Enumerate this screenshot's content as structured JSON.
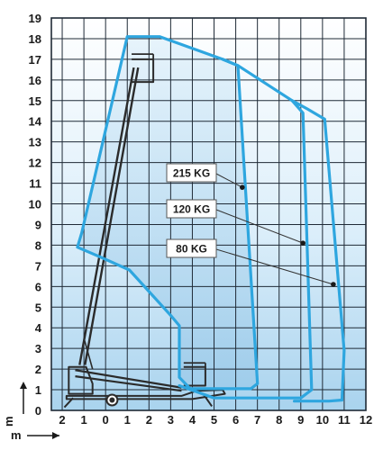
{
  "chart": {
    "x_axis": {
      "unit_label": "m",
      "ticks": [
        "2",
        "1",
        "0",
        "1",
        "2",
        "3",
        "4",
        "5",
        "6",
        "7",
        "8",
        "9",
        "10",
        "11",
        "12"
      ],
      "tick_values": [
        -2,
        -1,
        0,
        1,
        2,
        3,
        4,
        5,
        6,
        7,
        8,
        9,
        10,
        11,
        12
      ],
      "range": [
        -2.5,
        12
      ]
    },
    "y_axis": {
      "unit_label": "m",
      "ticks": [
        "0",
        "1",
        "2",
        "3",
        "4",
        "5",
        "6",
        "7",
        "8",
        "9",
        "10",
        "11",
        "12",
        "13",
        "14",
        "15",
        "16",
        "17",
        "18",
        "19"
      ],
      "range": [
        0,
        19
      ]
    },
    "grid": true,
    "colors": {
      "envelope": "#2ea6df",
      "grid": "#1f2a36",
      "fill_light": "#ffffff",
      "fill_dark": "#a9d3ee",
      "machine": "#2b2b2b",
      "label_border": "#555555"
    },
    "load_labels": [
      {
        "text": "215 KG",
        "dot": {
          "x": 6.3,
          "y": 10.8
        }
      },
      {
        "text": "120 KG",
        "dot": {
          "x": 9.1,
          "y": 8.1
        }
      },
      {
        "text": "80 KG",
        "dot": {
          "x": 10.5,
          "y": 6.1
        }
      }
    ]
  },
  "chart_data": {
    "type": "diagram",
    "title": "",
    "xlabel": "m",
    "ylabel": "",
    "xlim": [
      -2.5,
      12
    ],
    "ylim": [
      0,
      19
    ],
    "series": [
      {
        "name": "215 KG",
        "points": [
          [
            -1.3,
            7.9
          ],
          [
            -1.1,
            8.6
          ],
          [
            1.0,
            18.1
          ],
          [
            2.5,
            18.1
          ],
          [
            5.4,
            17.0
          ],
          [
            6.1,
            16.7
          ],
          [
            7.0,
            1.3
          ],
          [
            6.7,
            1.05
          ],
          [
            3.9,
            1.05
          ],
          [
            3.4,
            1.6
          ],
          [
            3.4,
            4.1
          ],
          [
            3.0,
            4.6
          ],
          [
            1.1,
            6.8
          ],
          [
            -0.4,
            7.5
          ]
        ]
      },
      {
        "name": "120 KG",
        "points": [
          [
            5.4,
            17.0
          ],
          [
            6.1,
            16.7
          ],
          [
            8.6,
            15.0
          ],
          [
            9.1,
            14.4
          ],
          [
            9.5,
            1.0
          ],
          [
            9.0,
            0.6
          ],
          [
            5.0,
            0.6
          ],
          [
            3.4,
            1.2
          ]
        ]
      },
      {
        "name": "80 KG",
        "points": [
          [
            8.6,
            15.0
          ],
          [
            9.3,
            14.6
          ],
          [
            10.1,
            14.1
          ],
          [
            11.0,
            2.9
          ],
          [
            10.9,
            0.5
          ],
          [
            10.3,
            0.45
          ],
          [
            8.7,
            0.45
          ]
        ]
      }
    ]
  }
}
